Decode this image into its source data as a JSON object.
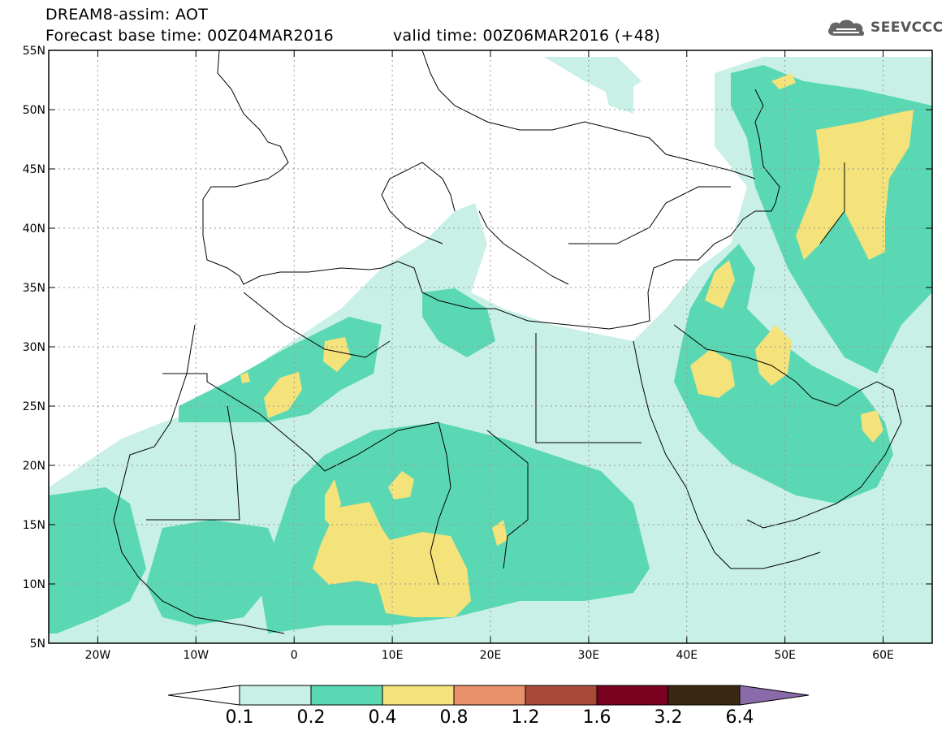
{
  "header": {
    "line1": "DREAM8-assim: AOT",
    "line2": "Forecast base time: 00Z04MAR2016",
    "valid": "valid time: 00Z06MAR2016 (+48)"
  },
  "logo": {
    "text": "SEEVCCC",
    "icon": "cloud-icon"
  },
  "map": {
    "lon_range": [
      -25,
      65
    ],
    "lat_range": [
      5,
      55
    ],
    "lon_ticks": [
      {
        "v": -20,
        "label": "20W"
      },
      {
        "v": -10,
        "label": "10W"
      },
      {
        "v": 0,
        "label": "0"
      },
      {
        "v": 10,
        "label": "10E"
      },
      {
        "v": 20,
        "label": "20E"
      },
      {
        "v": 30,
        "label": "30E"
      },
      {
        "v": 40,
        "label": "40E"
      },
      {
        "v": 50,
        "label": "50E"
      },
      {
        "v": 60,
        "label": "60E"
      }
    ],
    "lat_ticks": [
      {
        "v": 55,
        "label": "55N"
      },
      {
        "v": 50,
        "label": "50N"
      },
      {
        "v": 45,
        "label": "45N"
      },
      {
        "v": 40,
        "label": "40N"
      },
      {
        "v": 35,
        "label": "35N"
      },
      {
        "v": 30,
        "label": "30N"
      },
      {
        "v": 25,
        "label": "25N"
      },
      {
        "v": 20,
        "label": "20N"
      },
      {
        "v": 15,
        "label": "15N"
      },
      {
        "v": 10,
        "label": "10N"
      },
      {
        "v": 5,
        "label": "5N"
      }
    ],
    "grid": true
  },
  "colorbar": {
    "levels": [
      "0.1",
      "0.2",
      "0.4",
      "0.8",
      "1.2",
      "1.6",
      "3.2",
      "6.4"
    ],
    "colors": [
      "#ffffff",
      "#c8f0e6",
      "#5ad8b4",
      "#f4e27a",
      "#e8906a",
      "#a84a3a",
      "#7a0020",
      "#3a2812",
      "#8a6aa8"
    ]
  }
}
